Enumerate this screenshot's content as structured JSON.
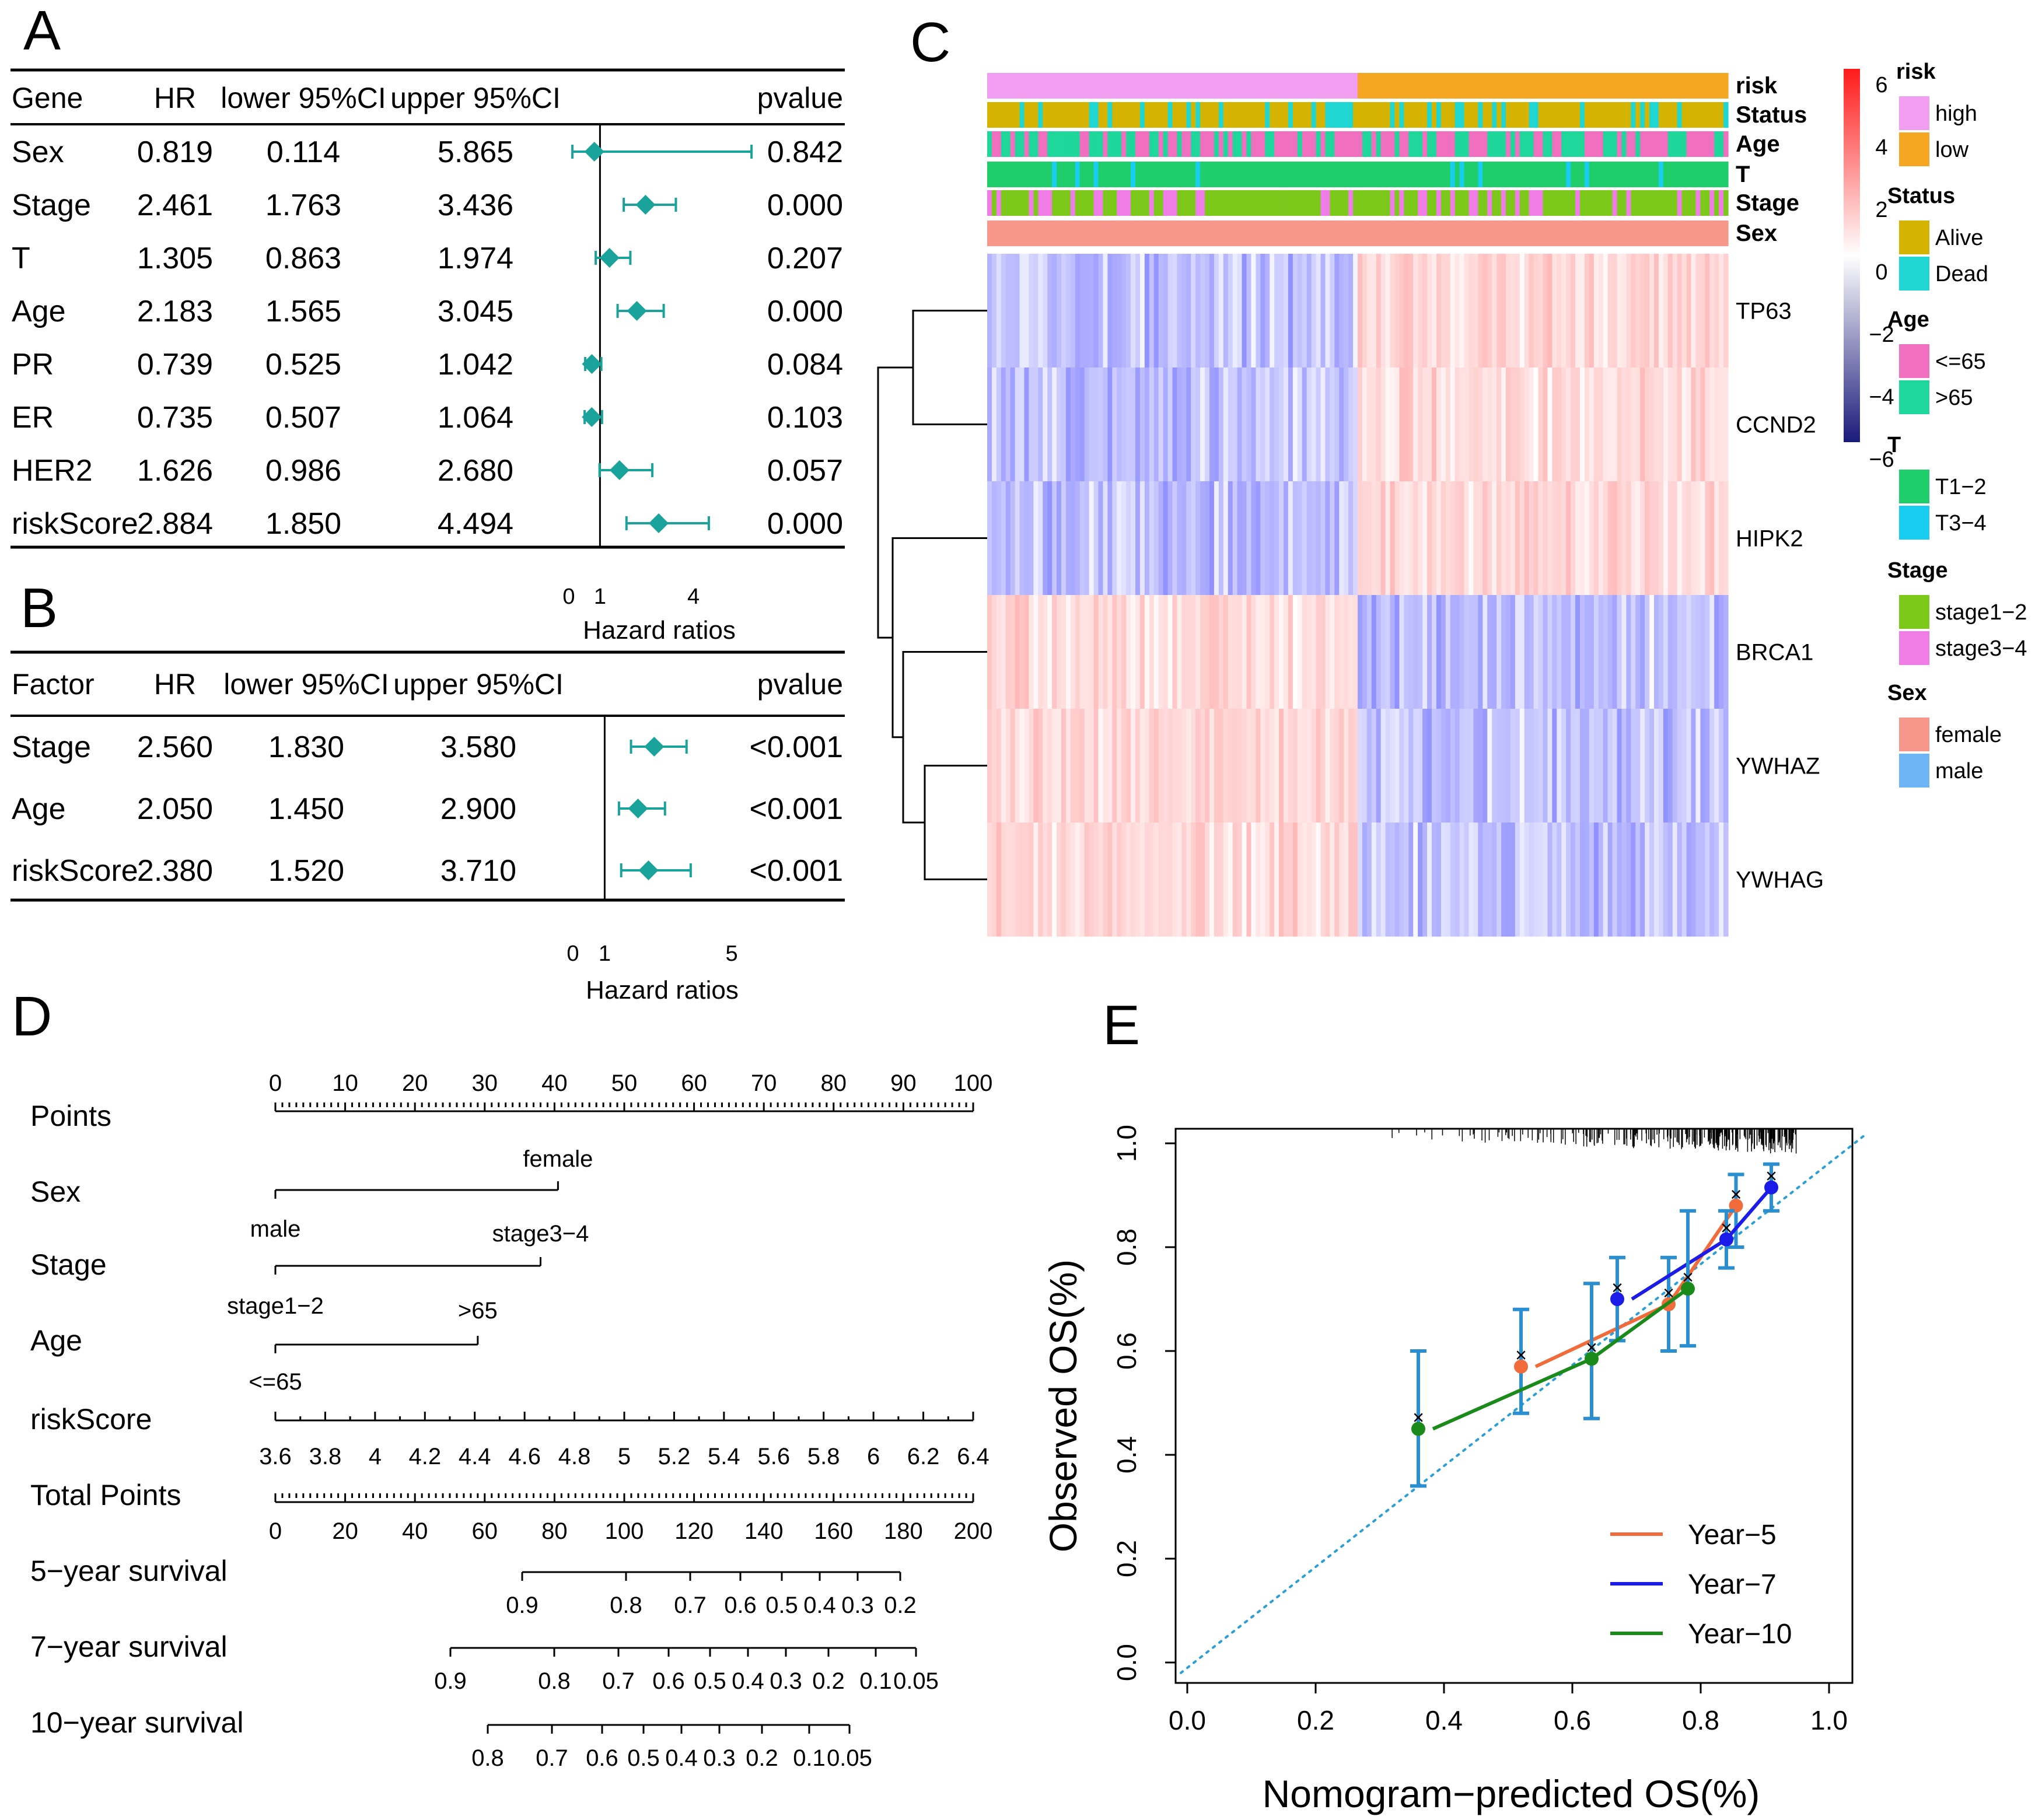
{
  "panels": {
    "A": "A",
    "B": "B",
    "C": "C",
    "D": "D",
    "E": "E"
  },
  "forestA": {
    "headers": [
      "Gene",
      "HR",
      "lower 95%CI",
      "upper 95%CI",
      "pvalue"
    ],
    "rows": [
      {
        "name": "Sex",
        "hr": "0.819",
        "lower": "0.114",
        "upper": "5.865",
        "p": "0.842"
      },
      {
        "name": "Stage",
        "hr": "2.461",
        "lower": "1.763",
        "upper": "3.436",
        "p": "0.000"
      },
      {
        "name": "T",
        "hr": "1.305",
        "lower": "0.863",
        "upper": "1.974",
        "p": "0.207"
      },
      {
        "name": "Age",
        "hr": "2.183",
        "lower": "1.565",
        "upper": "3.045",
        "p": "0.000"
      },
      {
        "name": "PR",
        "hr": "0.739",
        "lower": "0.525",
        "upper": "1.042",
        "p": "0.084"
      },
      {
        "name": "ER",
        "hr": "0.735",
        "lower": "0.507",
        "upper": "1.064",
        "p": "0.103"
      },
      {
        "name": "HER2",
        "hr": "1.626",
        "lower": "0.986",
        "upper": "2.680",
        "p": "0.057"
      },
      {
        "name": "riskScore",
        "hr": "2.884",
        "lower": "1.850",
        "upper": "4.494",
        "p": "0.000"
      }
    ],
    "xticks": [
      0,
      1,
      4
    ],
    "xlabel": "Hazard ratios",
    "xrange": [
      0,
      5.9
    ],
    "color": "#1aa39a"
  },
  "forestB": {
    "headers": [
      "Factor",
      "HR",
      "lower 95%CI",
      "upper 95%CI",
      "pvalue"
    ],
    "rows": [
      {
        "name": "Stage",
        "hr": "2.560",
        "lower": "1.830",
        "upper": "3.580",
        "p": "<0.001"
      },
      {
        "name": "Age",
        "hr": "2.050",
        "lower": "1.450",
        "upper": "2.900",
        "p": "<0.001"
      },
      {
        "name": "riskScore",
        "hr": "2.380",
        "lower": "1.520",
        "upper": "3.710",
        "p": "<0.001"
      }
    ],
    "xticks": [
      0,
      1,
      5
    ],
    "xlabel": "Hazard ratios",
    "xrange": [
      0,
      5.9
    ],
    "color": "#1aa39a"
  },
  "heatmap": {
    "annotations": [
      "risk",
      "Status",
      "Age",
      "T",
      "Stage",
      "Sex"
    ],
    "genes": [
      "TP63",
      "CCND2",
      "HIPK2",
      "BRCA1",
      "YWHAZ",
      "YWHAG"
    ],
    "scale": {
      "ticks": [
        "6",
        "4",
        "2",
        "0",
        "−2",
        "−4",
        "−6"
      ]
    },
    "legend": [
      {
        "title": "risk",
        "items": [
          {
            "label": "high",
            "color": "#f29ef0"
          },
          {
            "label": "low",
            "color": "#f5a623"
          }
        ]
      },
      {
        "title": "Status",
        "items": [
          {
            "label": "Alive",
            "color": "#d4b400"
          },
          {
            "label": "Dead",
            "color": "#1fd6d3"
          }
        ]
      },
      {
        "title": "Age",
        "items": [
          {
            "label": "<=65",
            "color": "#f06fbf"
          },
          {
            "label": ">65",
            "color": "#1fd69b"
          }
        ]
      },
      {
        "title": "T",
        "items": [
          {
            "label": "T1−2",
            "color": "#1fce6a"
          },
          {
            "label": "T3−4",
            "color": "#18cdf0"
          }
        ]
      },
      {
        "title": "Stage",
        "items": [
          {
            "label": "stage1−2",
            "color": "#7cc91c"
          },
          {
            "label": "stage3−4",
            "color": "#f07ce6"
          }
        ]
      },
      {
        "title": "Sex",
        "items": [
          {
            "label": "female",
            "color": "#f7968b"
          },
          {
            "label": "male",
            "color": "#6eb5f5"
          }
        ]
      }
    ]
  },
  "nomogram": {
    "points_label": "Points",
    "points_ticks": [
      "0",
      "10",
      "20",
      "30",
      "40",
      "50",
      "60",
      "70",
      "80",
      "90",
      "100"
    ],
    "sex": {
      "label": "Sex",
      "left": "male",
      "right": "female"
    },
    "stage": {
      "label": "Stage",
      "left": "stage1−2",
      "right": "stage3−4"
    },
    "age": {
      "label": "Age",
      "left": "<=65",
      "right": ">65"
    },
    "riskscore": {
      "label": "riskScore",
      "ticks": [
        "3.6",
        "3.8",
        "4",
        "4.2",
        "4.4",
        "4.6",
        "4.8",
        "5",
        "5.2",
        "5.4",
        "5.6",
        "5.8",
        "6",
        "6.2",
        "6.4"
      ]
    },
    "total": {
      "label": "Total Points",
      "ticks": [
        "0",
        "20",
        "40",
        "60",
        "80",
        "100",
        "120",
        "140",
        "160",
        "180",
        "200"
      ]
    },
    "surv5": {
      "label": "5−year survival",
      "ticks": [
        "0.9",
        "0.8",
        "0.7",
        "0.6",
        "0.5",
        "0.4",
        "0.3",
        "0.2"
      ]
    },
    "surv7": {
      "label": "7−year survival",
      "ticks": [
        "0.9",
        "0.8",
        "0.7",
        "0.6",
        "0.5",
        "0.4",
        "0.3",
        "0.2",
        "0.1",
        "0.05"
      ]
    },
    "surv10": {
      "label": "10−year survival",
      "ticks": [
        "0.8",
        "0.7",
        "0.6",
        "0.5",
        "0.4",
        "0.3",
        "0.2",
        "0.1",
        "0.05"
      ]
    }
  },
  "chart_data": {
    "type": "line",
    "title": "",
    "xlabel": "Nomogram−predicted OS(%)",
    "ylabel": "Observed OS(%)",
    "xlim": [
      0,
      1
    ],
    "ylim": [
      0,
      1
    ],
    "xticks": [
      "0.0",
      "0.2",
      "0.4",
      "0.6",
      "0.8",
      "1.0"
    ],
    "yticks": [
      "0.0",
      "0.2",
      "0.4",
      "0.6",
      "0.8",
      "1.0"
    ],
    "series": [
      {
        "name": "Year−5",
        "color": "#f26b3a",
        "x": [
          0.52,
          0.75,
          0.855
        ],
        "y": [
          0.57,
          0.69,
          0.88
        ],
        "lo": [
          0.48,
          0.6,
          0.8
        ],
        "hi": [
          0.68,
          0.78,
          0.94
        ]
      },
      {
        "name": "Year−7",
        "color": "#1c1ce8",
        "x": [
          0.67,
          0.84,
          0.91
        ],
        "y": [
          0.7,
          0.815,
          0.915
        ],
        "lo": [
          0.62,
          0.76,
          0.87
        ],
        "hi": [
          0.78,
          0.87,
          0.96
        ]
      },
      {
        "name": "Year−10",
        "color": "#1a8a1a",
        "x": [
          0.36,
          0.63,
          0.78
        ],
        "y": [
          0.45,
          0.585,
          0.72
        ],
        "lo": [
          0.34,
          0.47,
          0.61
        ],
        "hi": [
          0.6,
          0.73,
          0.87
        ]
      }
    ]
  }
}
